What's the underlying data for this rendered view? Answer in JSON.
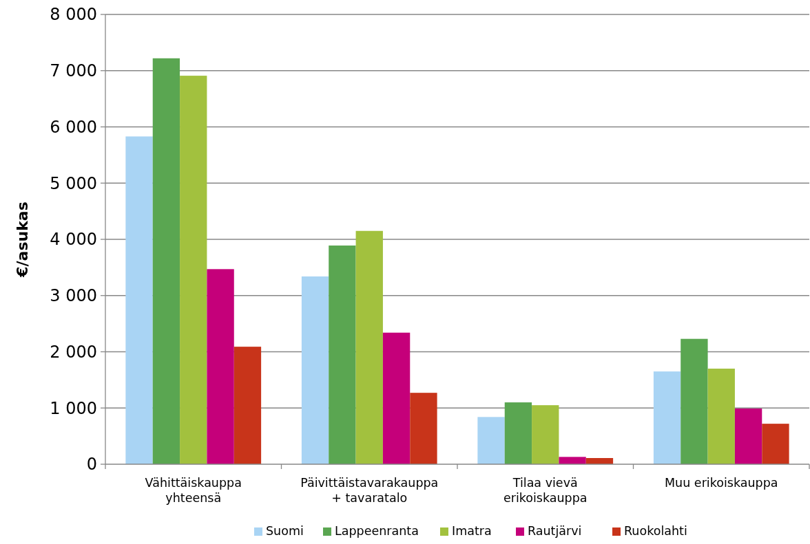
{
  "chart_data": {
    "type": "bar",
    "ylabel": "€/asukas",
    "categories": [
      "Vähittäiskauppa yhteensä",
      "Päivittäistavarakauppa + tavaratalo",
      "Tilaa vievä erikoiskauppa",
      "Muu erikoiskauppa"
    ],
    "series": [
      {
        "name": "Suomi",
        "color": "#a9d4f4",
        "values": [
          5830,
          3340,
          840,
          1650
        ]
      },
      {
        "name": "Lappeenranta",
        "color": "#5aa651",
        "values": [
          7220,
          3890,
          1100,
          2230
        ]
      },
      {
        "name": "Imatra",
        "color": "#a2c13e",
        "values": [
          6910,
          4150,
          1050,
          1700
        ]
      },
      {
        "name": "Rautjärvi",
        "color": "#c5007a",
        "values": [
          3470,
          2340,
          130,
          990
        ]
      },
      {
        "name": "Ruokolahti",
        "color": "#c8341a",
        "values": [
          2090,
          1270,
          110,
          720
        ]
      }
    ],
    "ylim": [
      0,
      8000
    ],
    "yticks": [
      {
        "value": 0,
        "label": "0"
      },
      {
        "value": 1000,
        "label": "1 000"
      },
      {
        "value": 2000,
        "label": "2 000"
      },
      {
        "value": 3000,
        "label": "3 000"
      },
      {
        "value": 4000,
        "label": "4 000"
      },
      {
        "value": 5000,
        "label": "5 000"
      },
      {
        "value": 6000,
        "label": "6 000"
      },
      {
        "value": 7000,
        "label": "7 000"
      },
      {
        "value": 8000,
        "label": "8 000"
      }
    ],
    "grid": "y",
    "legend": "bottom"
  }
}
